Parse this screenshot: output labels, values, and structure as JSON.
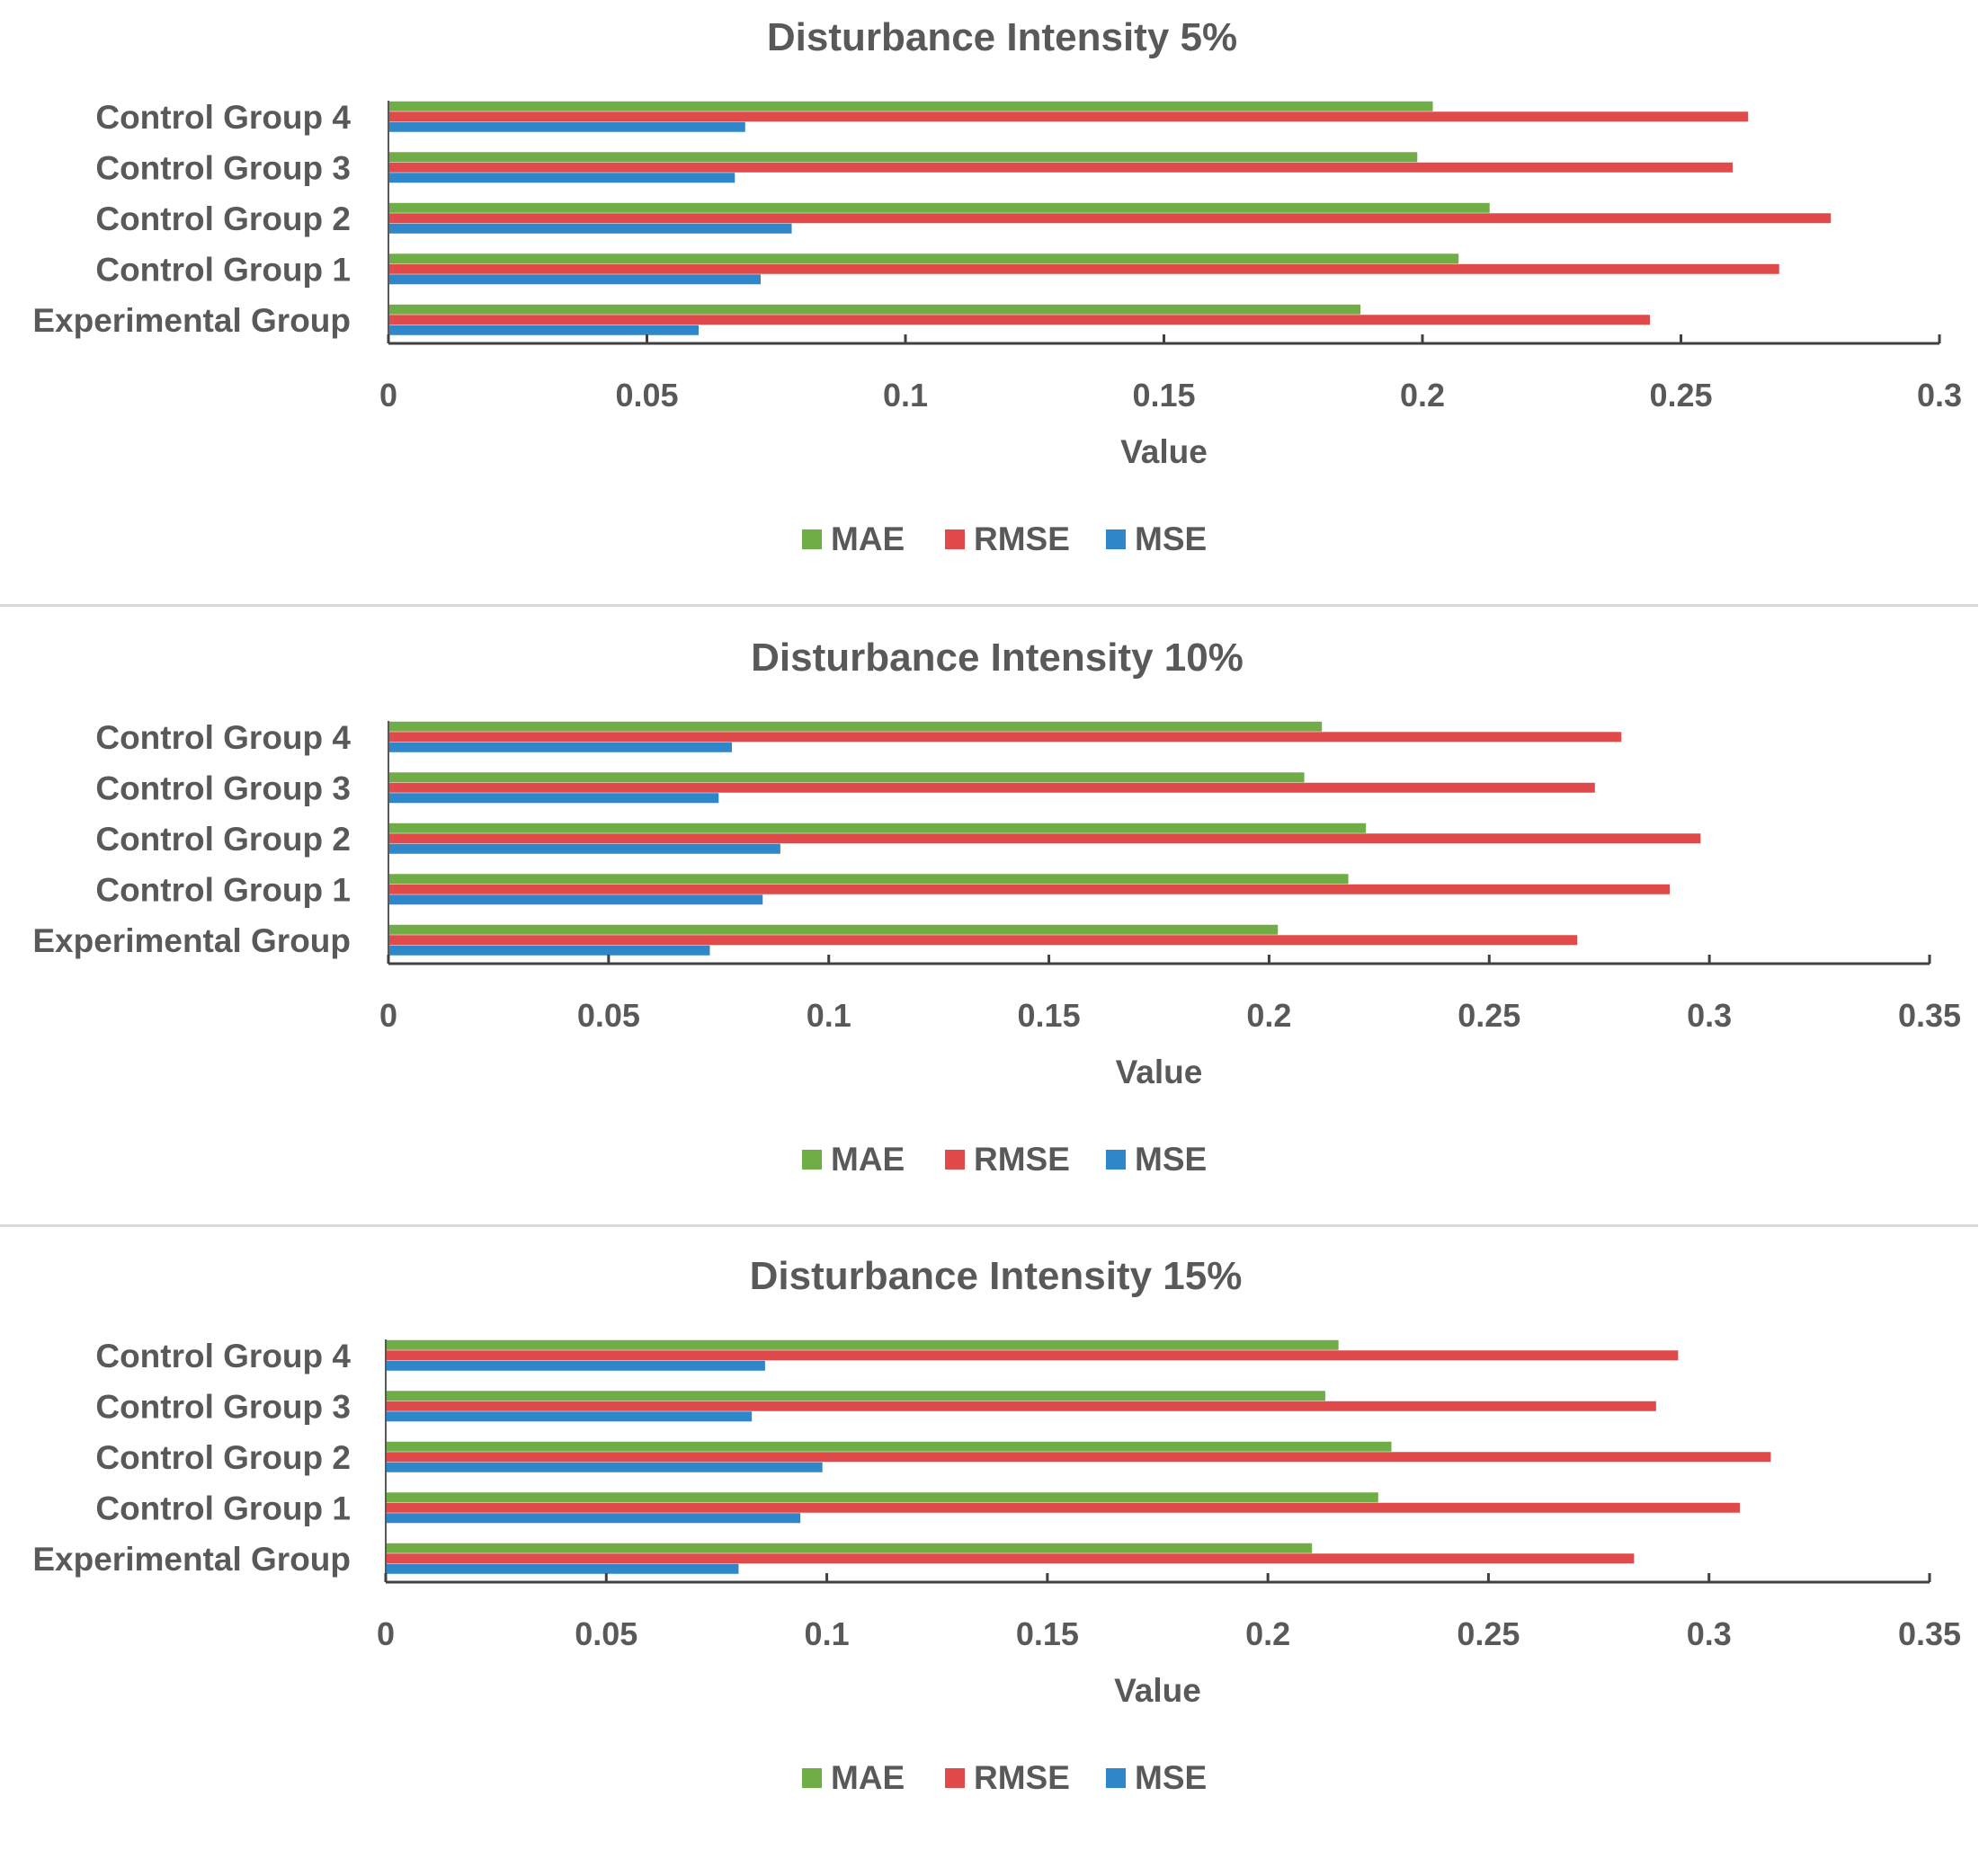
{
  "chart_data": [
    {
      "type": "bar",
      "orientation": "horizontal",
      "title": "Disturbance Intensity 5%",
      "xlabel": "Value",
      "ylabel": "",
      "xlim": [
        0,
        0.3
      ],
      "xticks": [
        "0",
        "0.05",
        "0.1",
        "0.15",
        "0.2",
        "0.25",
        "0.3"
      ],
      "grid": false,
      "legend": "bottom",
      "categories": [
        "Experimental Group",
        "Control Group 1",
        "Control Group 2",
        "Control Group 3",
        "Control Group 4"
      ],
      "series": [
        {
          "name": "MAE",
          "color": "#70ad47",
          "values": [
            0.188,
            0.207,
            0.213,
            0.199,
            0.202
          ]
        },
        {
          "name": "RMSE",
          "color": "#e04a4a",
          "values": [
            0.244,
            0.269,
            0.279,
            0.26,
            0.263
          ]
        },
        {
          "name": "MSE",
          "color": "#2f86c9",
          "values": [
            0.06,
            0.072,
            0.078,
            0.067,
            0.069
          ]
        }
      ]
    },
    {
      "type": "bar",
      "orientation": "horizontal",
      "title": "Disturbance Intensity 10%",
      "xlabel": "Value",
      "ylabel": "",
      "xlim": [
        0,
        0.35
      ],
      "xticks": [
        "0",
        "0.05",
        "0.1",
        "0.15",
        "0.2",
        "0.25",
        "0.3",
        "0.35"
      ],
      "grid": false,
      "legend": "bottom",
      "categories": [
        "Experimental Group",
        "Control Group 1",
        "Control Group 2",
        "Control Group 3",
        "Control Group 4"
      ],
      "series": [
        {
          "name": "MAE",
          "color": "#70ad47",
          "values": [
            0.202,
            0.218,
            0.222,
            0.208,
            0.212
          ]
        },
        {
          "name": "RMSE",
          "color": "#e04a4a",
          "values": [
            0.27,
            0.291,
            0.298,
            0.274,
            0.28
          ]
        },
        {
          "name": "MSE",
          "color": "#2f86c9",
          "values": [
            0.073,
            0.085,
            0.089,
            0.075,
            0.078
          ]
        }
      ]
    },
    {
      "type": "bar",
      "orientation": "horizontal",
      "title": "Disturbance Intensity 15%",
      "xlabel": "Value",
      "ylabel": "",
      "xlim": [
        0,
        0.35
      ],
      "xticks": [
        "0",
        "0.05",
        "0.1",
        "0.15",
        "0.2",
        "0.25",
        "0.3",
        "0.35"
      ],
      "grid": false,
      "legend": "bottom",
      "categories": [
        "Experimental Group",
        "Control Group 1",
        "Control Group 2",
        "Control Group 3",
        "Control Group 4"
      ],
      "series": [
        {
          "name": "MAE",
          "color": "#70ad47",
          "values": [
            0.21,
            0.225,
            0.228,
            0.213,
            0.216
          ]
        },
        {
          "name": "RMSE",
          "color": "#e04a4a",
          "values": [
            0.283,
            0.307,
            0.314,
            0.288,
            0.293
          ]
        },
        {
          "name": "MSE",
          "color": "#2f86c9",
          "values": [
            0.08,
            0.094,
            0.099,
            0.083,
            0.086
          ]
        }
      ]
    }
  ]
}
